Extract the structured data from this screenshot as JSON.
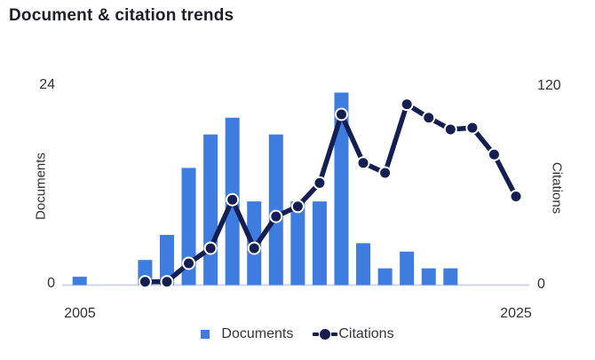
{
  "chart_data": {
    "type": "combo-bar-line",
    "title": "Document & citation trends",
    "x": [
      2005,
      2006,
      2007,
      2008,
      2009,
      2010,
      2011,
      2012,
      2013,
      2014,
      2015,
      2016,
      2017,
      2018,
      2019,
      2020,
      2021,
      2022,
      2023,
      2024,
      2025
    ],
    "series": [
      {
        "name": "Documents",
        "type": "bar",
        "y_axis": "left",
        "values": [
          1,
          null,
          null,
          3,
          6,
          14,
          18,
          20,
          10,
          18,
          10,
          10,
          23,
          5,
          2,
          4,
          2,
          2,
          null,
          null,
          null
        ]
      },
      {
        "name": "Citations",
        "type": "line",
        "y_axis": "right",
        "values": [
          null,
          null,
          null,
          2,
          2,
          13,
          22,
          51,
          22,
          41,
          47,
          61,
          102,
          73,
          67,
          108,
          100,
          93,
          94,
          78,
          53
        ]
      }
    ],
    "left_axis": {
      "label": "Documents",
      "min": 0,
      "max": 24
    },
    "right_axis": {
      "label": "Citations",
      "min": 0,
      "max": 120
    },
    "x_axis": {
      "start": "2005",
      "end": "2025"
    },
    "grid": "off",
    "legend_position": "bottom"
  },
  "colors": {
    "bar": "#3e7cdf",
    "line": "#131f52",
    "marker_ring": "#ffffff",
    "axis_line": "#ccd6e8",
    "title_text": "#1d1d2e",
    "tick_text": "#2f2f38",
    "legend_text": "#33333c"
  }
}
